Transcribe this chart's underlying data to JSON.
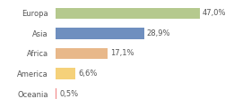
{
  "categories": [
    "Europa",
    "Asia",
    "Africa",
    "America",
    "Oceania"
  ],
  "values": [
    47.0,
    28.9,
    17.1,
    6.6,
    0.5
  ],
  "labels": [
    "47,0%",
    "28,9%",
    "17,1%",
    "6,6%",
    "0,5%"
  ],
  "bar_colors": [
    "#b5c98e",
    "#6f8fbf",
    "#e8b88a",
    "#f5d17a",
    "#f08080"
  ],
  "background_color": "#ffffff",
  "text_color": "#555555",
  "label_fontsize": 6.0,
  "tick_fontsize": 6.0,
  "bar_height": 0.55,
  "xlim": [
    0,
    62
  ]
}
